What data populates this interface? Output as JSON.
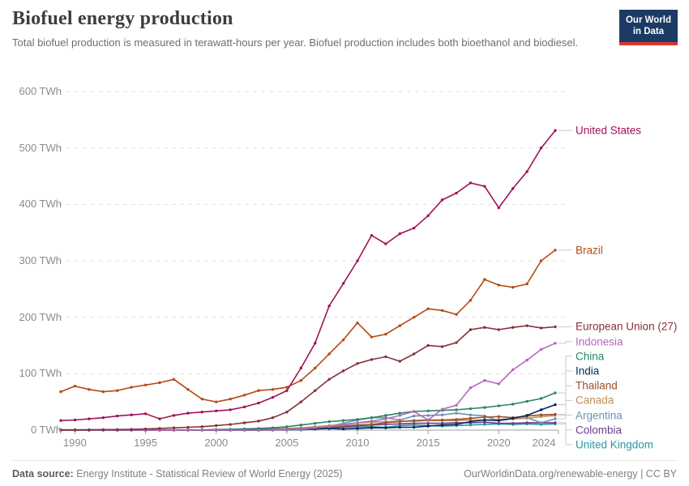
{
  "header": {
    "title": "Biofuel energy production",
    "subtitle": "Total biofuel production is measured in terawatt-hours per year. Biofuel production includes both bioethanol and biodiesel.",
    "logo": {
      "line1": "Our World",
      "line2": "in Data",
      "bg_color": "#1b3a64",
      "accent_color": "#d9382c"
    }
  },
  "footer": {
    "source_label": "Data source:",
    "source_text": " Energy Institute - Statistical Review of World Energy (2025)",
    "attribution": "OurWorldinData.org/renewable-energy | CC BY"
  },
  "chart_data": {
    "type": "line",
    "title": "Biofuel energy production",
    "unit": "TWh",
    "xlabel": "",
    "ylabel": "",
    "xlim": [
      1989,
      2024
    ],
    "ylim": [
      0,
      600
    ],
    "grid": "horizontal-dashed",
    "legend_position": "right-of-line-ends",
    "x": [
      1989,
      1990,
      1991,
      1992,
      1993,
      1994,
      1995,
      1996,
      1997,
      1998,
      1999,
      2000,
      2001,
      2002,
      2003,
      2004,
      2005,
      2006,
      2007,
      2008,
      2009,
      2010,
      2011,
      2012,
      2013,
      2014,
      2015,
      2016,
      2017,
      2018,
      2019,
      2020,
      2021,
      2022,
      2023,
      2024
    ],
    "xticks": {
      "years": [
        1990,
        1995,
        2000,
        2005,
        2010,
        2015,
        2020,
        2024
      ]
    },
    "yticks": [
      {
        "value": 0,
        "label": "0 TWh"
      },
      {
        "value": 100,
        "label": "100 TWh"
      },
      {
        "value": 200,
        "label": "200 TWh"
      },
      {
        "value": 300,
        "label": "300 TWh"
      },
      {
        "value": 400,
        "label": "400 TWh"
      },
      {
        "value": 500,
        "label": "500 TWh"
      },
      {
        "value": 600,
        "label": "600 TWh"
      }
    ],
    "series": [
      {
        "name": "United States",
        "color": "#a1125a",
        "values": [
          17,
          18,
          20,
          22,
          25,
          27,
          29,
          20,
          26,
          30,
          32,
          34,
          36,
          41,
          48,
          58,
          70,
          110,
          154,
          220,
          260,
          300,
          345,
          330,
          348,
          358,
          380,
          408,
          420,
          438,
          432,
          394,
          428,
          458,
          500,
          531
        ]
      },
      {
        "name": "Brazil",
        "color": "#b54a16",
        "values": [
          68,
          78,
          72,
          68,
          70,
          76,
          80,
          84,
          90,
          72,
          55,
          50,
          55,
          62,
          70,
          72,
          76,
          88,
          110,
          135,
          160,
          190,
          165,
          170,
          185,
          200,
          215,
          212,
          205,
          230,
          267,
          257,
          253,
          259,
          300,
          319
        ]
      },
      {
        "name": "European Union (27)",
        "color": "#883039",
        "values": [
          0.4,
          0.5,
          0.6,
          0.8,
          1,
          1.3,
          2,
          3,
          4,
          5,
          6,
          8,
          10,
          13,
          16,
          22,
          32,
          50,
          70,
          90,
          105,
          118,
          125,
          130,
          122,
          135,
          150,
          148,
          155,
          178,
          182,
          178,
          182,
          185,
          181,
          183
        ]
      },
      {
        "name": "Indonesia",
        "color": "#b268ba",
        "values": [
          0,
          0,
          0,
          0,
          0,
          0,
          0,
          0,
          0,
          0,
          0,
          0,
          0,
          0,
          0,
          0.5,
          1,
          2,
          4,
          6,
          9,
          13,
          16,
          20,
          26,
          33,
          18,
          37,
          44,
          75,
          88,
          82,
          107,
          124,
          143,
          154
        ]
      },
      {
        "name": "China",
        "color": "#2c8465",
        "values": [
          0,
          0,
          0,
          0,
          0,
          0,
          0,
          0,
          0,
          0,
          0,
          1,
          1.5,
          2,
          3,
          4,
          6,
          9,
          12,
          15,
          17,
          19,
          22,
          26,
          30,
          33,
          34,
          35,
          36,
          38,
          40,
          43,
          46,
          51,
          56,
          66
        ]
      },
      {
        "name": "India",
        "color": "#00295b",
        "values": [
          0,
          0,
          0,
          0,
          0,
          0,
          0,
          0,
          0,
          0,
          0,
          0,
          0,
          0.3,
          0.5,
          0.8,
          1,
          2,
          2,
          3,
          2,
          3,
          4,
          4,
          5,
          5,
          7,
          9,
          10,
          15,
          18,
          17,
          21,
          26,
          36,
          45
        ]
      },
      {
        "name": "Thailand",
        "color": "#9a5129",
        "values": [
          0,
          0,
          0,
          0,
          0,
          0,
          0,
          0,
          0,
          0,
          0,
          0,
          0,
          0,
          0,
          0.5,
          1,
          2,
          3,
          5,
          7,
          9,
          10,
          13,
          15,
          17,
          18,
          18,
          19,
          21,
          23,
          24,
          22,
          25,
          27,
          28
        ]
      },
      {
        "name": "Canada",
        "color": "#bc8e5a",
        "values": [
          0.5,
          0.5,
          0.5,
          0.5,
          0.5,
          0.5,
          0.5,
          0.5,
          0.5,
          0.5,
          0.5,
          1,
          1.5,
          2,
          2,
          2.5,
          3,
          4,
          6,
          8,
          10,
          13,
          14,
          15,
          16,
          16,
          17,
          17,
          17,
          18,
          18,
          19,
          20,
          21,
          24,
          26
        ]
      },
      {
        "name": "Argentina",
        "color": "#6d8fb5",
        "values": [
          0,
          0,
          0,
          0,
          0,
          0,
          0,
          0,
          0,
          0,
          0,
          0,
          0,
          0,
          0,
          0,
          0,
          0,
          2,
          7,
          12,
          18,
          22,
          22,
          18,
          25,
          26,
          27,
          30,
          27,
          25,
          17,
          20,
          22,
          13,
          20
        ]
      },
      {
        "name": "Colombia",
        "color": "#6d3e91",
        "values": [
          0,
          0,
          0,
          0,
          0,
          0,
          0,
          0,
          0,
          0,
          0,
          0,
          0,
          0,
          0,
          0,
          0.5,
          1,
          2,
          4,
          6,
          8,
          9,
          10,
          11,
          12,
          12,
          12,
          13,
          13,
          14,
          12,
          12,
          13,
          13,
          13
        ]
      },
      {
        "name": "United Kingdom",
        "color": "#2c97a0",
        "values": [
          0,
          0,
          0,
          0,
          0,
          0,
          0,
          0,
          0,
          0,
          0,
          0,
          0,
          0,
          0,
          0,
          1,
          2,
          3,
          4,
          5,
          6,
          6,
          5,
          8,
          9,
          8,
          7,
          8,
          9,
          10,
          11,
          10,
          11,
          10,
          11
        ]
      }
    ]
  }
}
